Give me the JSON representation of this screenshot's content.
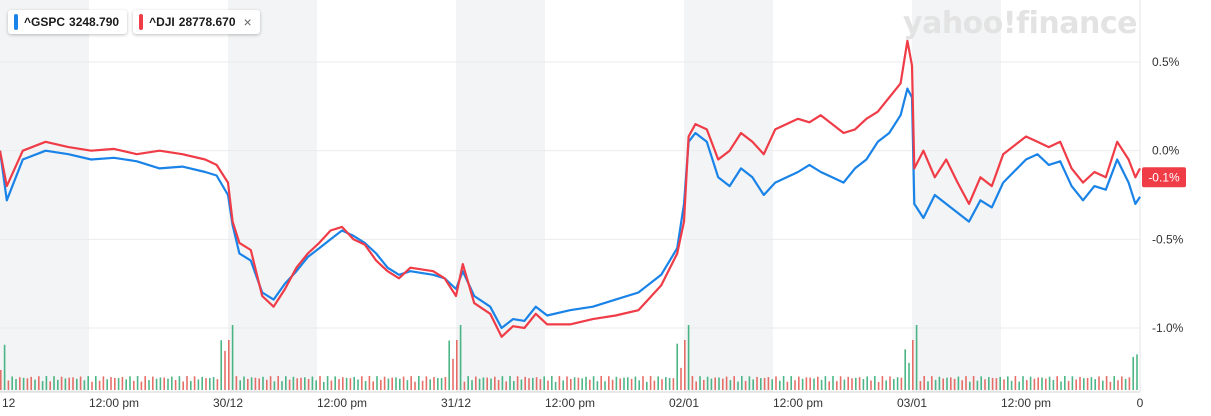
{
  "legend": {
    "items": [
      {
        "symbol": "^GSPC",
        "value": "3248.790",
        "color": "#1a83e8"
      },
      {
        "symbol": "^DJI",
        "value": "28778.670",
        "color": "#ef3c47",
        "close": "×"
      }
    ]
  },
  "brand": {
    "text": "yahoo!finance"
  },
  "colors": {
    "gspc": "#1a83e8",
    "dji": "#ef3c47",
    "volume_up": "#2ea872",
    "volume_down": "#e2564e",
    "band": "#f2f4f5"
  },
  "chart_data": {
    "type": "line",
    "ylim": [
      -1.35,
      0.85
    ],
    "y_ticks": [
      0.5,
      0.0,
      -0.5,
      -1.0
    ],
    "y_tick_labels": [
      "0.5%",
      "0.0%",
      "-0.5%",
      "-1.0%"
    ],
    "x_tick_labels": [
      "12",
      "12:00 pm",
      "30/12",
      "12:00 pm",
      "31/12",
      "12:00 pm",
      "02/01",
      "12:00 pm",
      "03/01",
      "12:00 pm",
      "0"
    ],
    "x_tick_t": [
      0.0,
      0.5,
      1.0,
      1.5,
      2.0,
      2.5,
      3.0,
      3.5,
      4.0,
      4.5,
      5.0
    ],
    "sessions": [
      [
        0,
        1
      ],
      [
        1,
        2
      ],
      [
        2,
        3
      ],
      [
        3,
        4
      ],
      [
        4,
        5
      ]
    ],
    "current_badge": "-0.1%",
    "current_value": -0.15,
    "series": [
      {
        "name": "^GSPC",
        "color": "#1a83e8",
        "points": [
          [
            0.0,
            0.0
          ],
          [
            0.03,
            -0.28
          ],
          [
            0.1,
            -0.05
          ],
          [
            0.2,
            0.0
          ],
          [
            0.3,
            -0.02
          ],
          [
            0.4,
            -0.05
          ],
          [
            0.5,
            -0.04
          ],
          [
            0.6,
            -0.06
          ],
          [
            0.7,
            -0.1
          ],
          [
            0.8,
            -0.09
          ],
          [
            0.9,
            -0.12
          ],
          [
            0.95,
            -0.14
          ],
          [
            1.0,
            -0.25
          ],
          [
            1.02,
            -0.42
          ],
          [
            1.05,
            -0.58
          ],
          [
            1.1,
            -0.62
          ],
          [
            1.15,
            -0.8
          ],
          [
            1.2,
            -0.84
          ],
          [
            1.25,
            -0.75
          ],
          [
            1.3,
            -0.68
          ],
          [
            1.35,
            -0.6
          ],
          [
            1.4,
            -0.55
          ],
          [
            1.45,
            -0.5
          ],
          [
            1.5,
            -0.45
          ],
          [
            1.55,
            -0.48
          ],
          [
            1.6,
            -0.52
          ],
          [
            1.65,
            -0.58
          ],
          [
            1.7,
            -0.66
          ],
          [
            1.75,
            -0.7
          ],
          [
            1.8,
            -0.68
          ],
          [
            1.9,
            -0.7
          ],
          [
            1.95,
            -0.72
          ],
          [
            2.0,
            -0.78
          ],
          [
            2.03,
            -0.68
          ],
          [
            2.08,
            -0.82
          ],
          [
            2.15,
            -0.88
          ],
          [
            2.2,
            -1.0
          ],
          [
            2.25,
            -0.95
          ],
          [
            2.3,
            -0.96
          ],
          [
            2.35,
            -0.88
          ],
          [
            2.4,
            -0.93
          ],
          [
            2.5,
            -0.9
          ],
          [
            2.6,
            -0.88
          ],
          [
            2.7,
            -0.84
          ],
          [
            2.8,
            -0.8
          ],
          [
            2.9,
            -0.7
          ],
          [
            2.97,
            -0.55
          ],
          [
            3.0,
            -0.3
          ],
          [
            3.02,
            0.05
          ],
          [
            3.05,
            0.1
          ],
          [
            3.1,
            0.05
          ],
          [
            3.15,
            -0.15
          ],
          [
            3.2,
            -0.2
          ],
          [
            3.25,
            -0.1
          ],
          [
            3.3,
            -0.15
          ],
          [
            3.35,
            -0.25
          ],
          [
            3.4,
            -0.18
          ],
          [
            3.5,
            -0.12
          ],
          [
            3.55,
            -0.08
          ],
          [
            3.6,
            -0.12
          ],
          [
            3.65,
            -0.15
          ],
          [
            3.7,
            -0.18
          ],
          [
            3.75,
            -0.1
          ],
          [
            3.8,
            -0.05
          ],
          [
            3.85,
            0.05
          ],
          [
            3.9,
            0.1
          ],
          [
            3.95,
            0.2
          ],
          [
            3.98,
            0.35
          ],
          [
            4.0,
            0.3
          ],
          [
            4.01,
            -0.3
          ],
          [
            4.05,
            -0.38
          ],
          [
            4.1,
            -0.25
          ],
          [
            4.15,
            -0.3
          ],
          [
            4.2,
            -0.35
          ],
          [
            4.25,
            -0.4
          ],
          [
            4.3,
            -0.28
          ],
          [
            4.35,
            -0.32
          ],
          [
            4.4,
            -0.18
          ],
          [
            4.5,
            -0.05
          ],
          [
            4.55,
            -0.02
          ],
          [
            4.6,
            -0.08
          ],
          [
            4.65,
            -0.06
          ],
          [
            4.7,
            -0.2
          ],
          [
            4.75,
            -0.28
          ],
          [
            4.8,
            -0.2
          ],
          [
            4.85,
            -0.22
          ],
          [
            4.9,
            -0.05
          ],
          [
            4.95,
            -0.18
          ],
          [
            4.98,
            -0.3
          ],
          [
            5.0,
            -0.26
          ]
        ]
      },
      {
        "name": "^DJI",
        "color": "#ef3c47",
        "points": [
          [
            0.0,
            0.0
          ],
          [
            0.03,
            -0.2
          ],
          [
            0.1,
            0.0
          ],
          [
            0.2,
            0.05
          ],
          [
            0.3,
            0.02
          ],
          [
            0.4,
            0.0
          ],
          [
            0.5,
            0.01
          ],
          [
            0.6,
            -0.02
          ],
          [
            0.7,
            0.0
          ],
          [
            0.8,
            -0.02
          ],
          [
            0.9,
            -0.05
          ],
          [
            0.95,
            -0.08
          ],
          [
            1.0,
            -0.18
          ],
          [
            1.02,
            -0.4
          ],
          [
            1.05,
            -0.52
          ],
          [
            1.1,
            -0.56
          ],
          [
            1.15,
            -0.82
          ],
          [
            1.2,
            -0.88
          ],
          [
            1.25,
            -0.78
          ],
          [
            1.3,
            -0.66
          ],
          [
            1.35,
            -0.58
          ],
          [
            1.4,
            -0.52
          ],
          [
            1.45,
            -0.45
          ],
          [
            1.5,
            -0.43
          ],
          [
            1.55,
            -0.5
          ],
          [
            1.6,
            -0.53
          ],
          [
            1.65,
            -0.62
          ],
          [
            1.7,
            -0.68
          ],
          [
            1.75,
            -0.72
          ],
          [
            1.8,
            -0.66
          ],
          [
            1.9,
            -0.68
          ],
          [
            1.95,
            -0.72
          ],
          [
            2.0,
            -0.82
          ],
          [
            2.03,
            -0.64
          ],
          [
            2.08,
            -0.86
          ],
          [
            2.15,
            -0.92
          ],
          [
            2.2,
            -1.05
          ],
          [
            2.25,
            -0.99
          ],
          [
            2.3,
            -1.0
          ],
          [
            2.35,
            -0.92
          ],
          [
            2.4,
            -0.98
          ],
          [
            2.5,
            -0.98
          ],
          [
            2.6,
            -0.95
          ],
          [
            2.7,
            -0.93
          ],
          [
            2.8,
            -0.9
          ],
          [
            2.9,
            -0.76
          ],
          [
            2.97,
            -0.58
          ],
          [
            3.0,
            -0.4
          ],
          [
            3.02,
            0.08
          ],
          [
            3.05,
            0.15
          ],
          [
            3.1,
            0.12
          ],
          [
            3.15,
            -0.05
          ],
          [
            3.2,
            0.0
          ],
          [
            3.25,
            0.1
          ],
          [
            3.3,
            0.05
          ],
          [
            3.35,
            -0.02
          ],
          [
            3.4,
            0.12
          ],
          [
            3.5,
            0.18
          ],
          [
            3.55,
            0.16
          ],
          [
            3.6,
            0.2
          ],
          [
            3.65,
            0.15
          ],
          [
            3.7,
            0.1
          ],
          [
            3.75,
            0.12
          ],
          [
            3.8,
            0.18
          ],
          [
            3.85,
            0.22
          ],
          [
            3.9,
            0.3
          ],
          [
            3.95,
            0.38
          ],
          [
            3.98,
            0.62
          ],
          [
            4.0,
            0.48
          ],
          [
            4.01,
            -0.1
          ],
          [
            4.05,
            0.0
          ],
          [
            4.1,
            -0.15
          ],
          [
            4.15,
            -0.05
          ],
          [
            4.2,
            -0.18
          ],
          [
            4.25,
            -0.3
          ],
          [
            4.3,
            -0.15
          ],
          [
            4.35,
            -0.2
          ],
          [
            4.4,
            -0.02
          ],
          [
            4.5,
            0.08
          ],
          [
            4.55,
            0.05
          ],
          [
            4.6,
            0.02
          ],
          [
            4.65,
            0.05
          ],
          [
            4.7,
            -0.1
          ],
          [
            4.75,
            -0.18
          ],
          [
            4.8,
            -0.12
          ],
          [
            4.85,
            -0.15
          ],
          [
            4.9,
            0.05
          ],
          [
            4.95,
            -0.05
          ],
          [
            4.98,
            -0.15
          ],
          [
            5.0,
            -0.1
          ]
        ]
      }
    ]
  }
}
